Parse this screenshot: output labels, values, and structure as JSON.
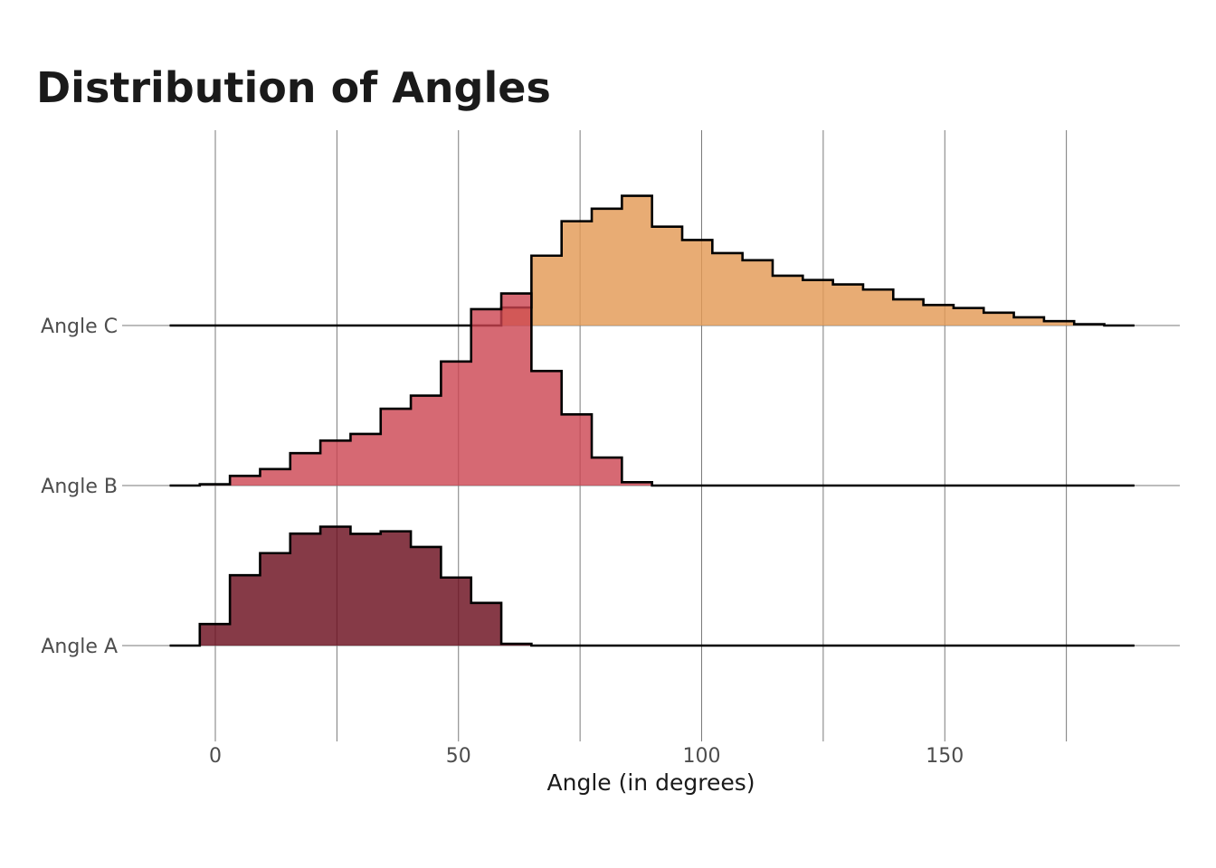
{
  "chart_data": {
    "type": "area",
    "subtype": "ridgeline-histogram",
    "title": "Distribution of Angles",
    "xlabel": "Angle (in degrees)",
    "ylabel": "",
    "xlim": [
      -20,
      198
    ],
    "x_ticks": [
      0,
      50,
      100,
      150
    ],
    "x_tick_labels": [
      "0",
      "50",
      "100",
      "150"
    ],
    "grid": "vertical",
    "legend": "none",
    "bin_edges": [
      -9.4,
      -3.2,
      3.0,
      9.2,
      15.4,
      21.6,
      27.8,
      34.0,
      40.2,
      46.4,
      52.6,
      58.8,
      65.0,
      71.2,
      77.4,
      83.6,
      89.8,
      96.0,
      102.2,
      108.4,
      114.6,
      120.8,
      127.0,
      133.2,
      139.4,
      145.6,
      151.8,
      158.0,
      164.2,
      170.4,
      176.6,
      182.8,
      189.0
    ],
    "series": [
      {
        "name": "Angle A",
        "color": "#6b0f1e",
        "values": [
          0,
          0.168,
          0.548,
          0.72,
          0.872,
          0.926,
          0.87,
          0.89,
          0.768,
          0.53,
          0.332,
          0.014,
          0,
          0,
          0,
          0,
          0,
          0,
          0,
          0,
          0,
          0,
          0,
          0,
          0,
          0,
          0,
          0,
          0,
          0,
          0,
          0
        ]
      },
      {
        "name": "Angle B",
        "color": "#cc4450",
        "values": [
          0,
          0.01,
          0.075,
          0.128,
          0.252,
          0.35,
          0.402,
          0.598,
          0.7,
          0.966,
          1.374,
          1.496,
          0.892,
          0.554,
          0.218,
          0.026,
          0,
          0,
          0,
          0,
          0,
          0,
          0,
          0,
          0,
          0,
          0,
          0,
          0,
          0,
          0,
          0
        ]
      },
      {
        "name": "Angle C",
        "color": "#e39a55",
        "values": [
          0,
          0,
          0,
          0,
          0,
          0,
          0,
          0,
          0,
          0,
          0,
          0.14,
          0.544,
          0.812,
          0.91,
          1.01,
          0.77,
          0.666,
          0.564,
          0.508,
          0.388,
          0.354,
          0.32,
          0.28,
          0.204,
          0.16,
          0.136,
          0.1,
          0.064,
          0.034,
          0.01,
          0
        ]
      }
    ]
  }
}
